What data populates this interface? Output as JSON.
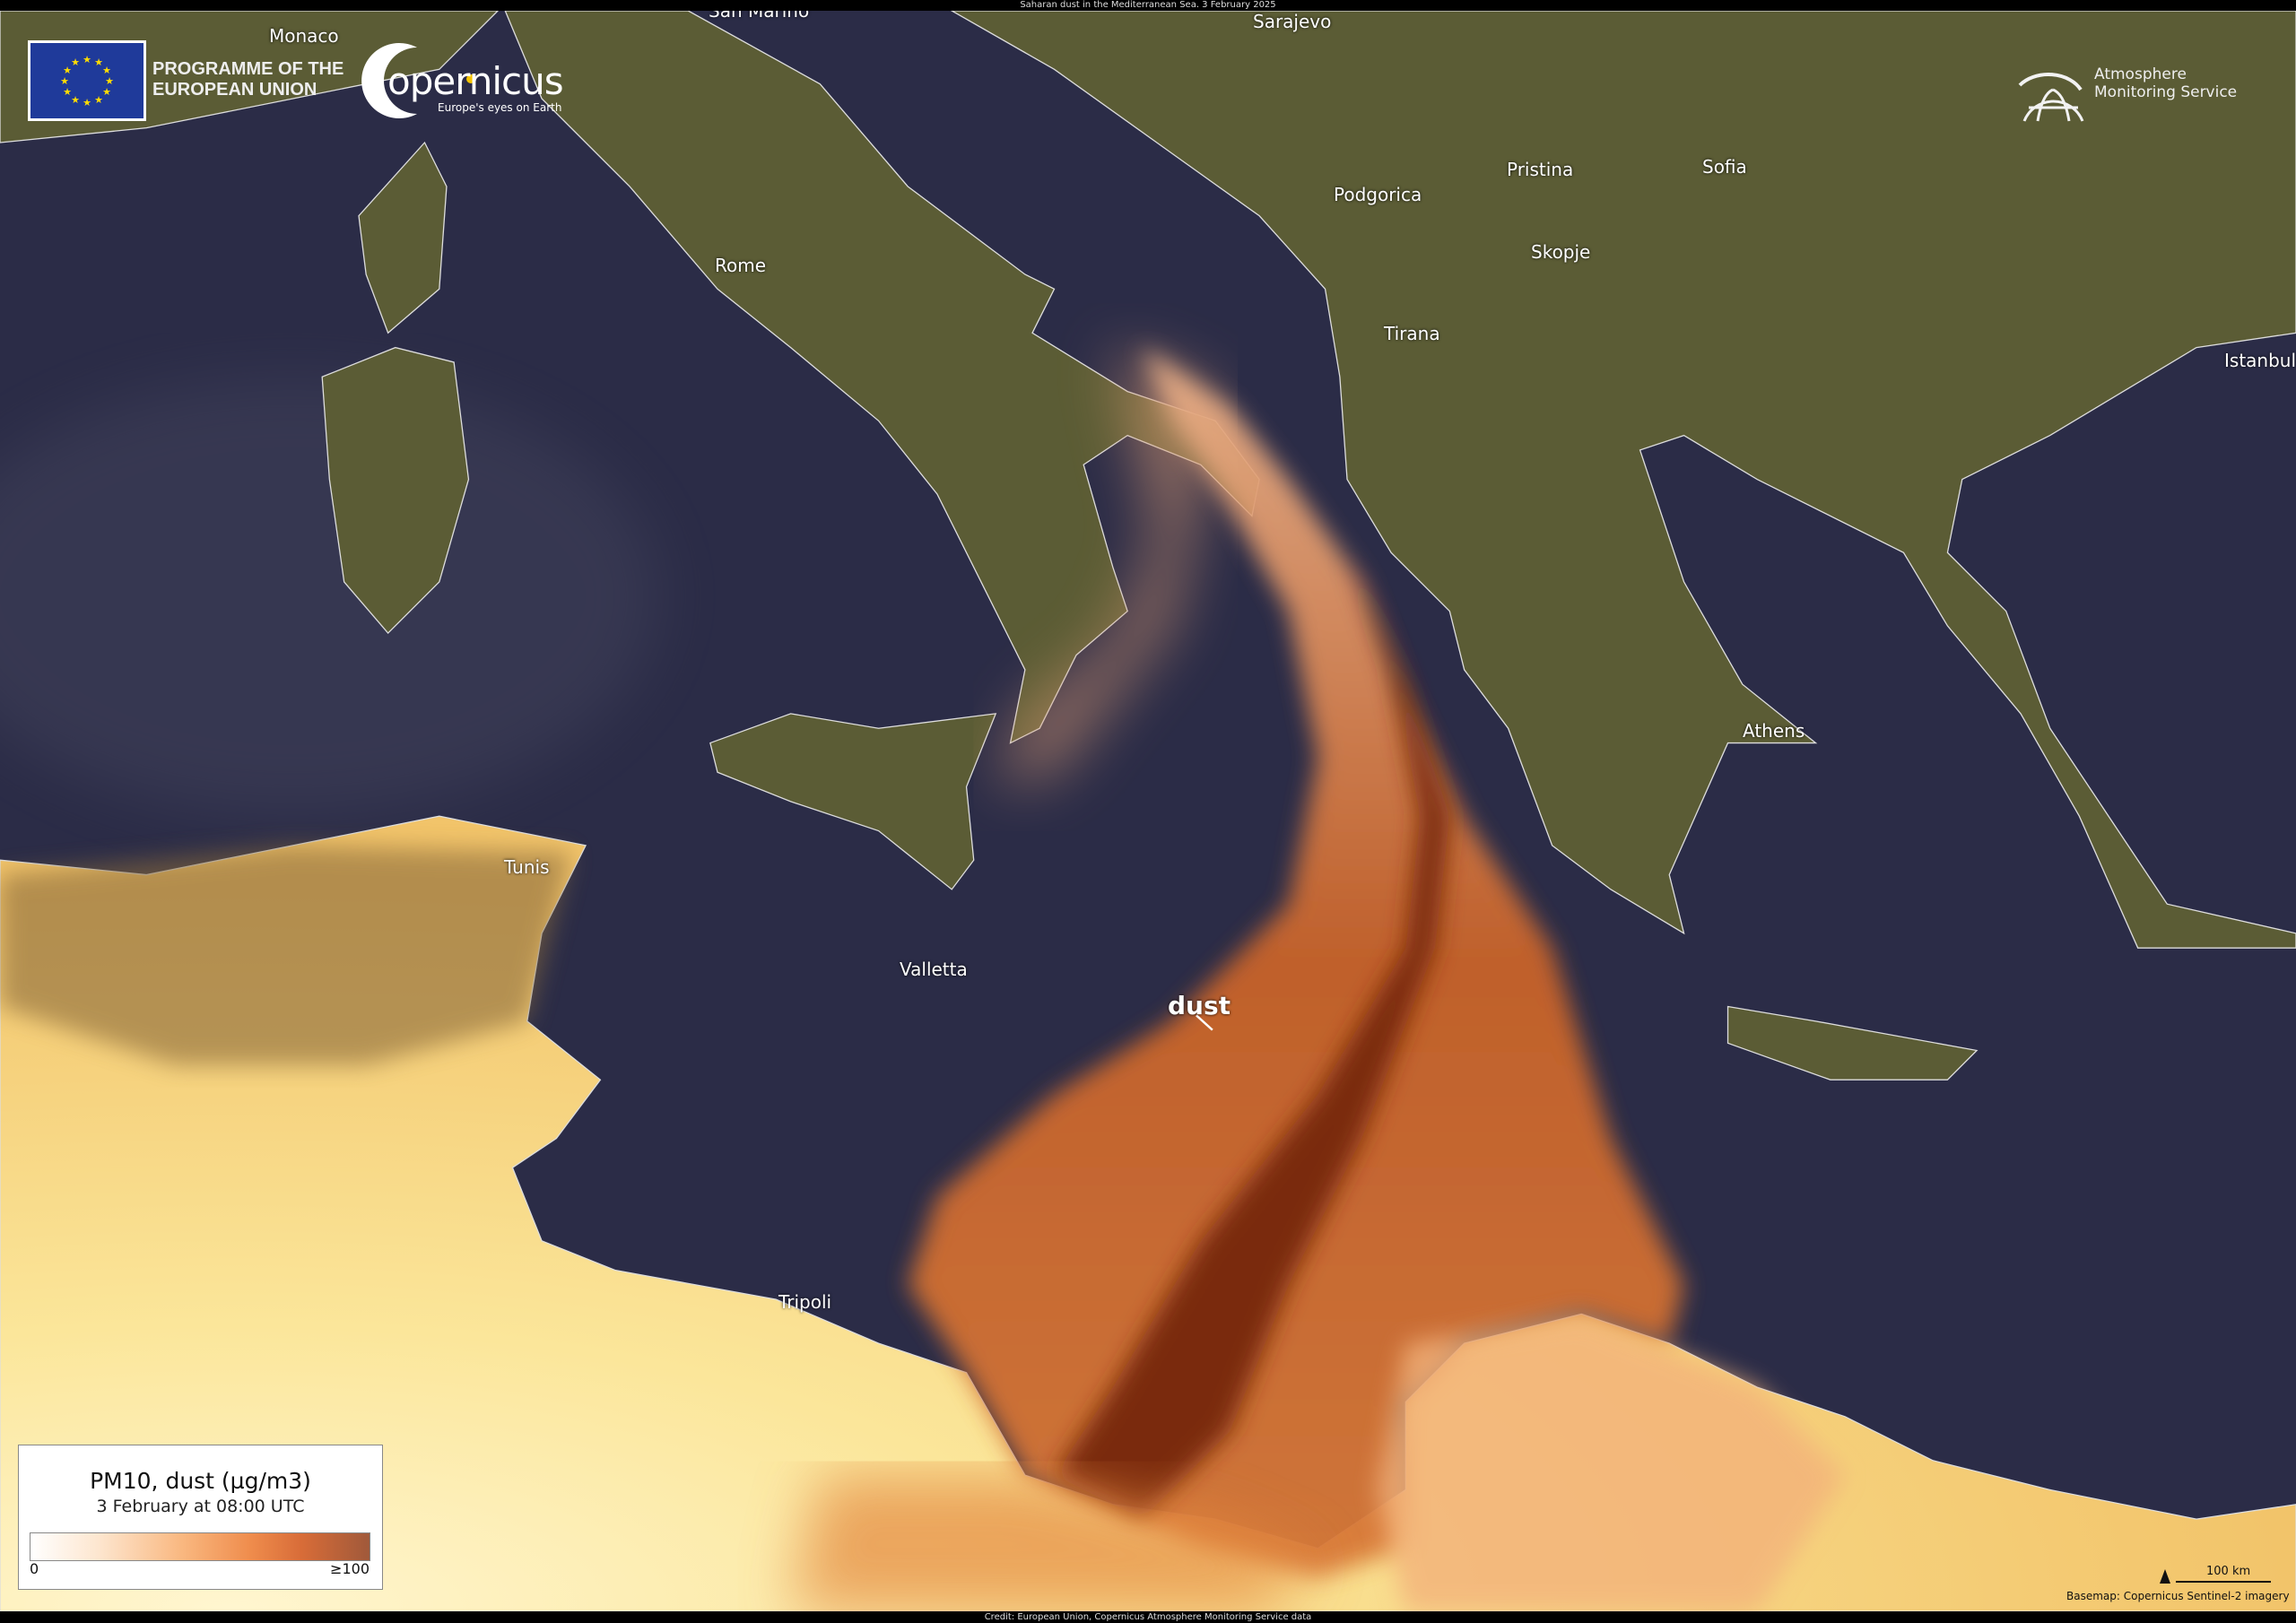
{
  "header": {
    "title": "Saharan dust in the Mediterranean Sea. 3 February 2025"
  },
  "footer": {
    "credit": "Credit: European Union, Copernicus Atmosphere Monitoring Service data"
  },
  "logos": {
    "eu_text_line1": "PROGRAMME OF THE",
    "eu_text_line2": "EUROPEAN UNION",
    "copernicus_word": "opernicus",
    "copernicus_tagline": "Europe's eyes on Earth",
    "cams_line1": "Atmosphere",
    "cams_line2": "Monitoring Service"
  },
  "places": {
    "monaco": "Monaco",
    "san_marino": "San Marino",
    "sarajevo": "Sarajevo",
    "rome": "Rome",
    "podgorica": "Podgorica",
    "pristina": "Pristina",
    "sofia": "Sofia",
    "skopje": "Skopje",
    "tirana": "Tirana",
    "istanbul": "Istanbul",
    "tunis": "Tunis",
    "valletta": "Valletta",
    "athens": "Athens",
    "tripoli": "Tripoli"
  },
  "annotation": {
    "dust": "dust"
  },
  "legend": {
    "title": "PM10, dust (µg/m3)",
    "subtitle": "3 February at 08:00 UTC",
    "min_label": "0",
    "max_label": "≥100",
    "colors": [
      "#ffffff",
      "#f9b77f",
      "#ef8c4c",
      "#a0593a"
    ]
  },
  "scale": {
    "label": "100 km",
    "basemap": "Basemap: Copernicus Sentinel-2 imagery"
  },
  "colors": {
    "sea": "#2b2c47",
    "land": "#5b5c35",
    "desert": "#f7e08a",
    "dust_core": "#7a2a0c"
  }
}
